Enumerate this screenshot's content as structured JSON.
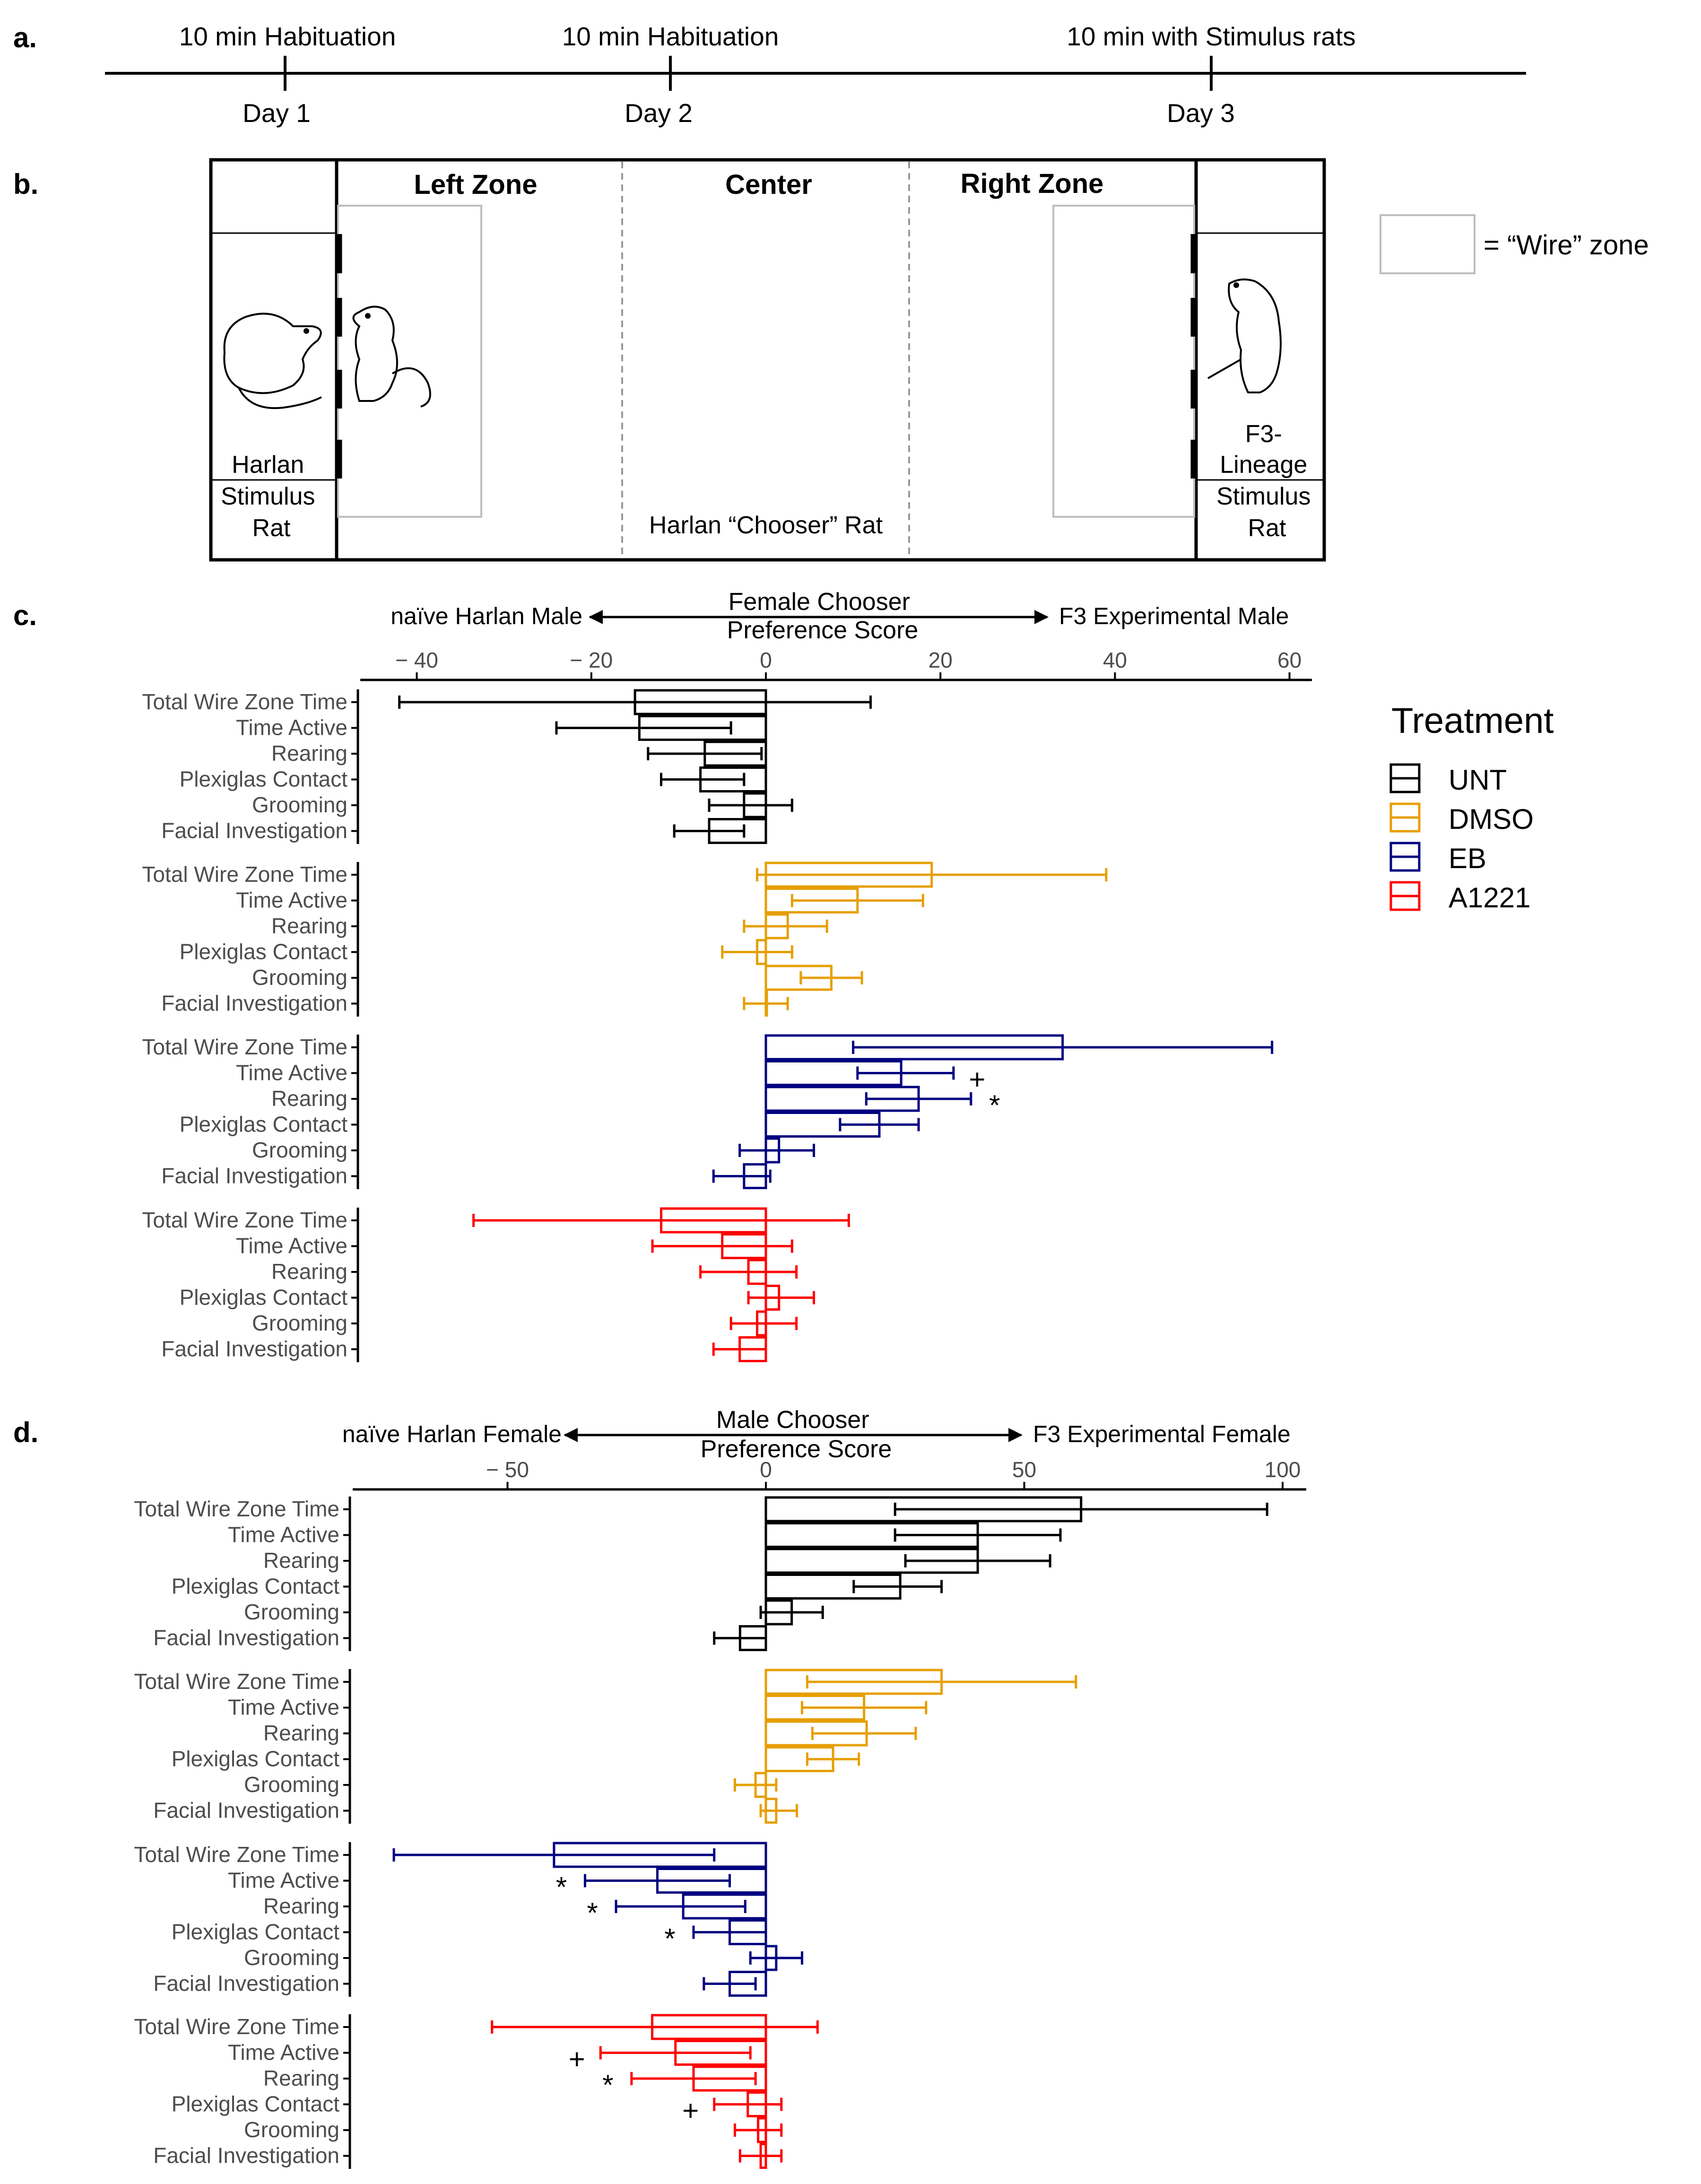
{
  "panel_a": {
    "label": "a.",
    "events": [
      {
        "label": "10 min Habituation",
        "day": "Day 1"
      },
      {
        "label": "10 min Habituation",
        "day": "Day 2"
      },
      {
        "label": "10 min with Stimulus rats",
        "day": "Day 3"
      }
    ]
  },
  "panel_b": {
    "label": "b.",
    "zones": {
      "left": "Left Zone",
      "center": "Center",
      "right": "Right Zone"
    },
    "left_stimulus": [
      "Harlan",
      "Stimulus",
      "Rat"
    ],
    "right_stimulus": [
      "F3-",
      "Lineage",
      "Stimulus",
      "Rat"
    ],
    "chooser": "Harlan “Chooser” Rat",
    "legend_text": "= “Wire” zone"
  },
  "legend": {
    "title": "Treatment",
    "items": [
      {
        "name": "UNT",
        "color": "#000000"
      },
      {
        "name": "DMSO",
        "color": "#E69F00"
      },
      {
        "name": "EB",
        "color": "#000080"
      },
      {
        "name": "A1221",
        "color": "#FF0000"
      }
    ]
  },
  "chart_data": [
    {
      "panel": "c.",
      "type": "bar",
      "orientation": "horizontal",
      "title": "Female Chooser\nPreference Score",
      "left_label": "naïve Harlan Male",
      "right_label": "F3 Experimental Male",
      "xlim": [
        -47,
        63
      ],
      "ticks": [
        -40,
        -20,
        0,
        20,
        40,
        60
      ],
      "tick_labels": [
        "− 40",
        "− 20",
        "0",
        "20",
        "40",
        "60"
      ],
      "categories": [
        "Total Wire Zone Time",
        "Time Active",
        "Rearing",
        "Plexiglas Contact",
        "Grooming",
        "Facial Investigation"
      ],
      "series": [
        {
          "name": "UNT",
          "values": [
            -15,
            -14.5,
            -7,
            -7.5,
            -2.5,
            -6.5
          ],
          "err_low": [
            -42,
            -24,
            -13.5,
            -12,
            -6.5,
            -10.5
          ],
          "err_high": [
            12,
            -4,
            -0.5,
            -2.5,
            3,
            -2.5
          ],
          "marks": [
            "",
            "",
            "",
            "",
            "",
            ""
          ]
        },
        {
          "name": "DMSO",
          "values": [
            19,
            10.5,
            2.5,
            -1,
            7.5,
            0
          ],
          "err_low": [
            -1,
            3,
            -2.5,
            -5,
            4,
            -2.5
          ],
          "err_high": [
            39,
            18,
            7,
            3,
            11,
            2.5
          ],
          "marks": [
            "",
            "",
            "",
            "",
            "",
            ""
          ]
        },
        {
          "name": "EB",
          "values": [
            34,
            15.5,
            17.5,
            13,
            1.5,
            -2.5
          ],
          "err_low": [
            10,
            10.5,
            11.5,
            8.5,
            -3,
            -6
          ],
          "err_high": [
            58,
            21.5,
            23.5,
            17.5,
            5.5,
            0.5
          ],
          "marks": [
            "",
            "+",
            "*",
            "",
            "",
            ""
          ]
        },
        {
          "name": "A1221",
          "values": [
            -12,
            -5,
            -2,
            1.5,
            -1,
            -3
          ],
          "err_low": [
            -33.5,
            -13,
            -7.5,
            -2,
            -4,
            -6
          ],
          "err_high": [
            9.5,
            3,
            3.5,
            5.5,
            3.5,
            0
          ],
          "marks": [
            "",
            "",
            "",
            "",
            "",
            ""
          ]
        }
      ]
    },
    {
      "panel": "d.",
      "type": "bar",
      "orientation": "horizontal",
      "title": "Male Chooser\nPreference Score",
      "left_label": "naïve Harlan Female",
      "right_label": "F3 Experimental Female",
      "xlim": [
        -81,
        105
      ],
      "ticks": [
        -50,
        0,
        50,
        100
      ],
      "tick_labels": [
        "− 50",
        "0",
        "50",
        "100"
      ],
      "categories": [
        "Total Wire Zone Time",
        "Time Active",
        "Rearing",
        "Plexiglas Contact",
        "Grooming",
        "Facial Investigation"
      ],
      "series": [
        {
          "name": "UNT",
          "values": [
            61,
            41,
            41,
            26,
            5,
            -5
          ],
          "err_low": [
            25,
            25,
            27,
            17,
            -1,
            -10
          ],
          "err_high": [
            97,
            57,
            55,
            34,
            11,
            0
          ],
          "marks": [
            "",
            "",
            "",
            "",
            "",
            ""
          ]
        },
        {
          "name": "DMSO",
          "values": [
            34,
            19,
            19.5,
            13,
            -2,
            2
          ],
          "err_low": [
            8,
            7,
            9,
            8,
            -6,
            -1
          ],
          "err_high": [
            60,
            31,
            29,
            18,
            2,
            6
          ],
          "marks": [
            "",
            "",
            "",
            "",
            "",
            ""
          ]
        },
        {
          "name": "EB",
          "values": [
            -41,
            -21,
            -16,
            -7,
            2,
            -7
          ],
          "err_low": [
            -72,
            -35,
            -29,
            -14,
            -3,
            -12
          ],
          "err_high": [
            -10,
            -7,
            -4,
            0,
            7,
            -2
          ],
          "marks": [
            "",
            "*",
            "*",
            "*",
            "",
            ""
          ]
        },
        {
          "name": "A1221",
          "values": [
            -22,
            -17.5,
            -14,
            -3.5,
            -1.5,
            -1
          ],
          "err_low": [
            -53,
            -32,
            -26,
            -10,
            -6,
            -5
          ],
          "err_high": [
            10,
            -3,
            -2,
            3,
            3,
            3
          ],
          "marks": [
            "",
            "+",
            "*",
            "+",
            "",
            ""
          ]
        }
      ]
    }
  ]
}
